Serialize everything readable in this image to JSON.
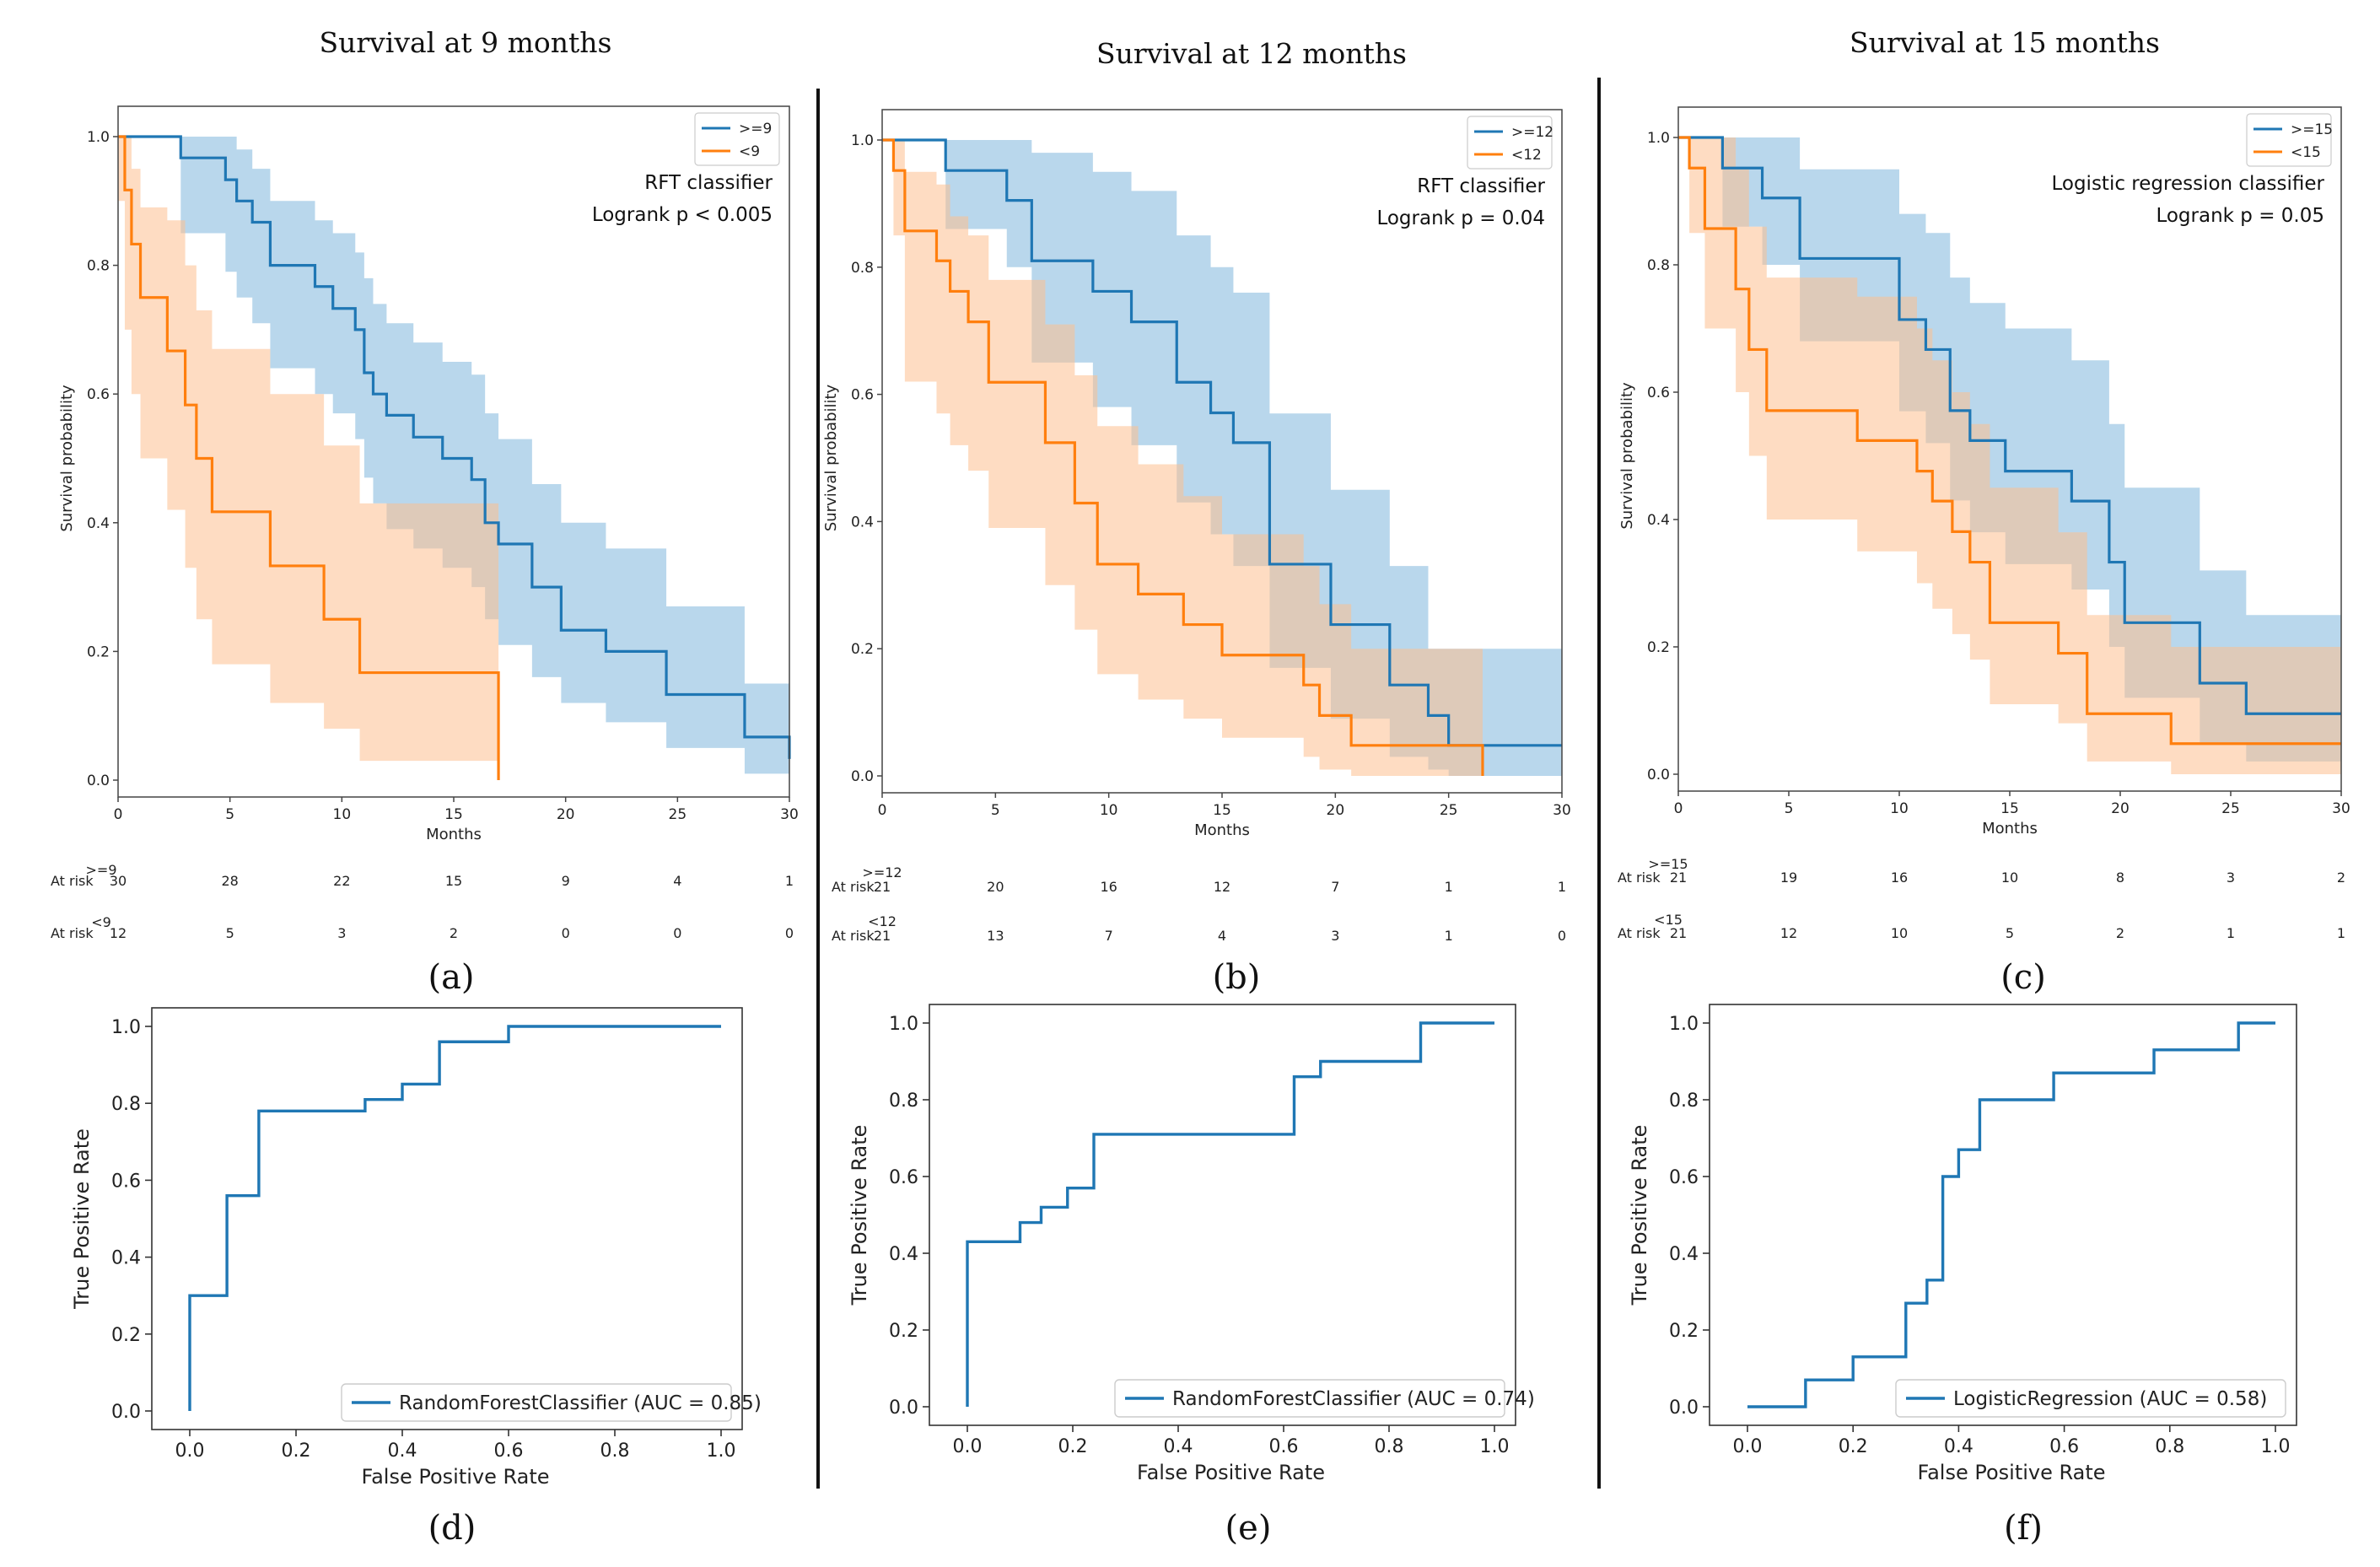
{
  "colors": {
    "blue": "#1f77b4",
    "orange": "#ff7f0e",
    "blue_fill": "#7fb6dd",
    "orange_fill": "#fdbf8f"
  },
  "chart_data": [
    {
      "type": "line",
      "subtype": "kaplan-meier",
      "panel": "(a)",
      "title": "Survival at 9 months",
      "xlabel": "Months",
      "ylabel": "Survival probability",
      "xlim": [
        0,
        30
      ],
      "ylim": [
        0,
        1
      ],
      "xticks": [
        "0",
        "5",
        "10",
        "15",
        "20",
        "25",
        "30"
      ],
      "yticks": [
        "0.0",
        "0.2",
        "0.4",
        "0.6",
        "0.8",
        "1.0"
      ],
      "annotations": [
        "RFT classifier",
        "Logrank p < 0.005"
      ],
      "series": [
        {
          "name": ">=9",
          "color": "blue",
          "x": [
            0,
            2.8,
            4.8,
            5.3,
            6,
            6.8,
            8.8,
            9.6,
            10.6,
            11,
            11.4,
            12,
            13.2,
            14.5,
            15.8,
            16.4,
            17,
            18.5,
            19.8,
            21.8,
            24.5,
            28,
            30
          ],
          "y": [
            1,
            0.967,
            0.933,
            0.9,
            0.867,
            0.8,
            0.767,
            0.733,
            0.7,
            0.633,
            0.6,
            0.567,
            0.533,
            0.5,
            0.467,
            0.4,
            0.367,
            0.3,
            0.233,
            0.2,
            0.133,
            0.067,
            0.033
          ],
          "lower": [
            1,
            0.85,
            0.79,
            0.75,
            0.71,
            0.64,
            0.6,
            0.57,
            0.53,
            0.47,
            0.43,
            0.39,
            0.36,
            0.33,
            0.3,
            0.25,
            0.21,
            0.16,
            0.12,
            0.09,
            0.05,
            0.01,
            0
          ],
          "upper": [
            1,
            1,
            1,
            0.98,
            0.95,
            0.9,
            0.87,
            0.85,
            0.82,
            0.78,
            0.74,
            0.71,
            0.68,
            0.65,
            0.63,
            0.57,
            0.53,
            0.46,
            0.4,
            0.36,
            0.27,
            0.15,
            0.15
          ]
        },
        {
          "name": "<9",
          "color": "orange",
          "x": [
            0,
            0.3,
            0.6,
            1,
            2.2,
            3,
            3.5,
            4.2,
            6.8,
            9.2,
            10.8,
            17
          ],
          "y": [
            1,
            0.917,
            0.833,
            0.75,
            0.667,
            0.583,
            0.5,
            0.417,
            0.333,
            0.25,
            0.167,
            0
          ],
          "lower": [
            0.9,
            0.7,
            0.6,
            0.5,
            0.42,
            0.33,
            0.25,
            0.18,
            0.12,
            0.08,
            0.03,
            0
          ],
          "upper": [
            1,
            1,
            0.95,
            0.89,
            0.87,
            0.8,
            0.73,
            0.67,
            0.6,
            0.52,
            0.43,
            0
          ]
        }
      ],
      "at_risk": {
        "times": [
          0,
          5,
          10,
          15,
          20,
          25,
          30
        ],
        "groups": [
          {
            "label": ">=9",
            "values": [
              30,
              28,
              22,
              15,
              9,
              4,
              1
            ]
          },
          {
            "label": "<9",
            "values": [
              12,
              5,
              3,
              2,
              0,
              0,
              0
            ]
          }
        ]
      }
    },
    {
      "type": "line",
      "subtype": "kaplan-meier",
      "panel": "(b)",
      "title": "Survival at 12 months",
      "xlabel": "Months",
      "ylabel": "Survival probability",
      "xlim": [
        0,
        30
      ],
      "ylim": [
        0,
        1
      ],
      "xticks": [
        "0",
        "5",
        "10",
        "15",
        "20",
        "25",
        "30"
      ],
      "yticks": [
        "0.0",
        "0.2",
        "0.4",
        "0.6",
        "0.8",
        "1.0"
      ],
      "annotations": [
        "RFT classifier",
        "Logrank p = 0.04"
      ],
      "series": [
        {
          "name": ">=12",
          "color": "blue",
          "x": [
            0,
            2.8,
            5.5,
            6.6,
            9.3,
            11,
            13,
            14.5,
            15.5,
            17.1,
            19.8,
            22.4,
            24.1,
            25,
            26.8,
            30
          ],
          "y": [
            1,
            0.952,
            0.905,
            0.81,
            0.762,
            0.714,
            0.619,
            0.571,
            0.524,
            0.333,
            0.238,
            0.143,
            0.095,
            0.048,
            0.048,
            0.048
          ],
          "lower": [
            1,
            0.86,
            0.8,
            0.65,
            0.58,
            0.52,
            0.43,
            0.38,
            0.33,
            0.17,
            0.09,
            0.03,
            0.01,
            0,
            0,
            0
          ],
          "upper": [
            1,
            1,
            1,
            0.98,
            0.95,
            0.92,
            0.85,
            0.8,
            0.76,
            0.57,
            0.45,
            0.33,
            0.2,
            0.2,
            0.2,
            0.2
          ]
        },
        {
          "name": "<12",
          "color": "orange",
          "x": [
            0,
            0.5,
            1,
            2.4,
            3,
            3.8,
            4.7,
            7.2,
            8.5,
            9.5,
            11.3,
            13.3,
            15,
            18.6,
            19.3,
            20.7,
            21.1,
            24.1,
            26.5
          ],
          "y": [
            1,
            0.952,
            0.857,
            0.81,
            0.762,
            0.714,
            0.619,
            0.524,
            0.429,
            0.333,
            0.286,
            0.238,
            0.19,
            0.143,
            0.095,
            0.048,
            0.048,
            0.048,
            0
          ],
          "lower": [
            1,
            0.85,
            0.62,
            0.57,
            0.52,
            0.48,
            0.39,
            0.3,
            0.23,
            0.16,
            0.12,
            0.09,
            0.06,
            0.03,
            0.01,
            0,
            0,
            0,
            0
          ],
          "upper": [
            1,
            1,
            0.95,
            0.93,
            0.88,
            0.85,
            0.78,
            0.71,
            0.63,
            0.55,
            0.49,
            0.44,
            0.38,
            0.33,
            0.27,
            0.2,
            0.2,
            0.2,
            0.2
          ]
        }
      ],
      "at_risk": {
        "times": [
          0,
          5,
          10,
          15,
          20,
          25,
          30
        ],
        "groups": [
          {
            "label": ">=12",
            "values": [
              21,
              20,
              16,
              12,
              7,
              1,
              1
            ]
          },
          {
            "label": "<12",
            "values": [
              21,
              13,
              7,
              4,
              3,
              1,
              0
            ]
          }
        ]
      }
    },
    {
      "type": "line",
      "subtype": "kaplan-meier",
      "panel": "(c)",
      "title": "Survival at 15 months",
      "xlabel": "Months",
      "ylabel": "Survival probability",
      "xlim": [
        0,
        30
      ],
      "ylim": [
        0,
        1
      ],
      "xticks": [
        "0",
        "5",
        "10",
        "15",
        "20",
        "25",
        "30"
      ],
      "yticks": [
        "0.0",
        "0.2",
        "0.4",
        "0.6",
        "0.8",
        "1.0"
      ],
      "annotations": [
        "Logistic regression classifier",
        "Logrank p = 0.05"
      ],
      "series": [
        {
          "name": ">=15",
          "color": "blue",
          "x": [
            0,
            2,
            3.8,
            5.5,
            10,
            11.2,
            12.3,
            13.2,
            14.8,
            17.8,
            19.5,
            20.2,
            23.6,
            25.7,
            30
          ],
          "y": [
            1,
            0.952,
            0.905,
            0.81,
            0.714,
            0.667,
            0.571,
            0.524,
            0.476,
            0.429,
            0.333,
            0.238,
            0.143,
            0.095,
            0.095
          ],
          "lower": [
            1,
            0.86,
            0.8,
            0.68,
            0.57,
            0.52,
            0.43,
            0.38,
            0.33,
            0.29,
            0.2,
            0.12,
            0.05,
            0.02,
            0.02
          ],
          "upper": [
            1,
            1,
            1,
            0.95,
            0.88,
            0.85,
            0.78,
            0.74,
            0.7,
            0.65,
            0.55,
            0.45,
            0.32,
            0.25,
            0.25
          ]
        },
        {
          "name": "<15",
          "color": "orange",
          "x": [
            0,
            0.5,
            1.2,
            2.6,
            3.2,
            4,
            8.1,
            10.8,
            11.5,
            12.4,
            13.2,
            14.1,
            17.2,
            18.5,
            22.3,
            30
          ],
          "y": [
            1,
            0.952,
            0.857,
            0.762,
            0.667,
            0.571,
            0.524,
            0.476,
            0.429,
            0.381,
            0.333,
            0.238,
            0.19,
            0.095,
            0.048,
            0.048
          ],
          "lower": [
            1,
            0.85,
            0.7,
            0.6,
            0.5,
            0.4,
            0.35,
            0.3,
            0.26,
            0.22,
            0.18,
            0.11,
            0.08,
            0.02,
            0,
            0
          ],
          "upper": [
            1,
            1,
            1,
            0.95,
            0.86,
            0.78,
            0.75,
            0.7,
            0.65,
            0.6,
            0.55,
            0.45,
            0.38,
            0.25,
            0.2,
            0.2
          ]
        }
      ],
      "at_risk": {
        "times": [
          0,
          5,
          10,
          15,
          20,
          25,
          30
        ],
        "groups": [
          {
            "label": ">=15",
            "values": [
              21,
              19,
              16,
              10,
              8,
              3,
              2
            ]
          },
          {
            "label": "<15",
            "values": [
              21,
              12,
              10,
              5,
              2,
              1,
              1
            ]
          }
        ]
      }
    },
    {
      "type": "line",
      "subtype": "roc",
      "panel": "(d)",
      "xlabel": "False Positive Rate",
      "ylabel": "True Positive Rate",
      "xlim": [
        0,
        1
      ],
      "ylim": [
        0,
        1
      ],
      "xticks": [
        "0.0",
        "0.2",
        "0.4",
        "0.6",
        "0.8",
        "1.0"
      ],
      "yticks": [
        "0.0",
        "0.2",
        "0.4",
        "0.6",
        "0.8",
        "1.0"
      ],
      "series": [
        {
          "name": "RandomForestClassifier (AUC = 0.85)",
          "color": "blue",
          "x": [
            0,
            0,
            0.07,
            0.07,
            0.13,
            0.13,
            0.33,
            0.33,
            0.4,
            0.4,
            0.47,
            0.47,
            0.6,
            0.6,
            1
          ],
          "y": [
            0,
            0.3,
            0.3,
            0.56,
            0.56,
            0.78,
            0.78,
            0.81,
            0.81,
            0.85,
            0.85,
            0.96,
            0.96,
            1,
            1
          ]
        }
      ]
    },
    {
      "type": "line",
      "subtype": "roc",
      "panel": "(e)",
      "xlabel": "False Positive Rate",
      "ylabel": "True Positive Rate",
      "xlim": [
        0,
        1
      ],
      "ylim": [
        0,
        1
      ],
      "xticks": [
        "0.0",
        "0.2",
        "0.4",
        "0.6",
        "0.8",
        "1.0"
      ],
      "yticks": [
        "0.0",
        "0.2",
        "0.4",
        "0.6",
        "0.8",
        "1.0"
      ],
      "series": [
        {
          "name": "RandomForestClassifier (AUC = 0.74)",
          "color": "blue",
          "x": [
            0,
            0,
            0.1,
            0.1,
            0.14,
            0.14,
            0.19,
            0.19,
            0.24,
            0.24,
            0.62,
            0.62,
            0.67,
            0.67,
            0.86,
            0.86,
            1
          ],
          "y": [
            0,
            0.43,
            0.43,
            0.48,
            0.48,
            0.52,
            0.52,
            0.57,
            0.57,
            0.71,
            0.71,
            0.86,
            0.86,
            0.9,
            0.9,
            1,
            1
          ]
        }
      ]
    },
    {
      "type": "line",
      "subtype": "roc",
      "panel": "(f)",
      "xlabel": "False Positive Rate",
      "ylabel": "True Positive Rate",
      "xlim": [
        0,
        1
      ],
      "ylim": [
        0,
        1
      ],
      "xticks": [
        "0.0",
        "0.2",
        "0.4",
        "0.6",
        "0.8",
        "1.0"
      ],
      "yticks": [
        "0.0",
        "0.2",
        "0.4",
        "0.6",
        "0.8",
        "1.0"
      ],
      "series": [
        {
          "name": "LogisticRegression (AUC = 0.58)",
          "color": "blue",
          "x": [
            0,
            0.11,
            0.11,
            0.2,
            0.2,
            0.3,
            0.3,
            0.34,
            0.34,
            0.37,
            0.37,
            0.4,
            0.4,
            0.44,
            0.44,
            0.58,
            0.58,
            0.77,
            0.77,
            0.93,
            0.93,
            1
          ],
          "y": [
            0,
            0,
            0.07,
            0.07,
            0.13,
            0.13,
            0.27,
            0.27,
            0.33,
            0.33,
            0.6,
            0.6,
            0.67,
            0.67,
            0.8,
            0.8,
            0.87,
            0.87,
            0.93,
            0.93,
            1,
            1
          ]
        }
      ]
    }
  ]
}
